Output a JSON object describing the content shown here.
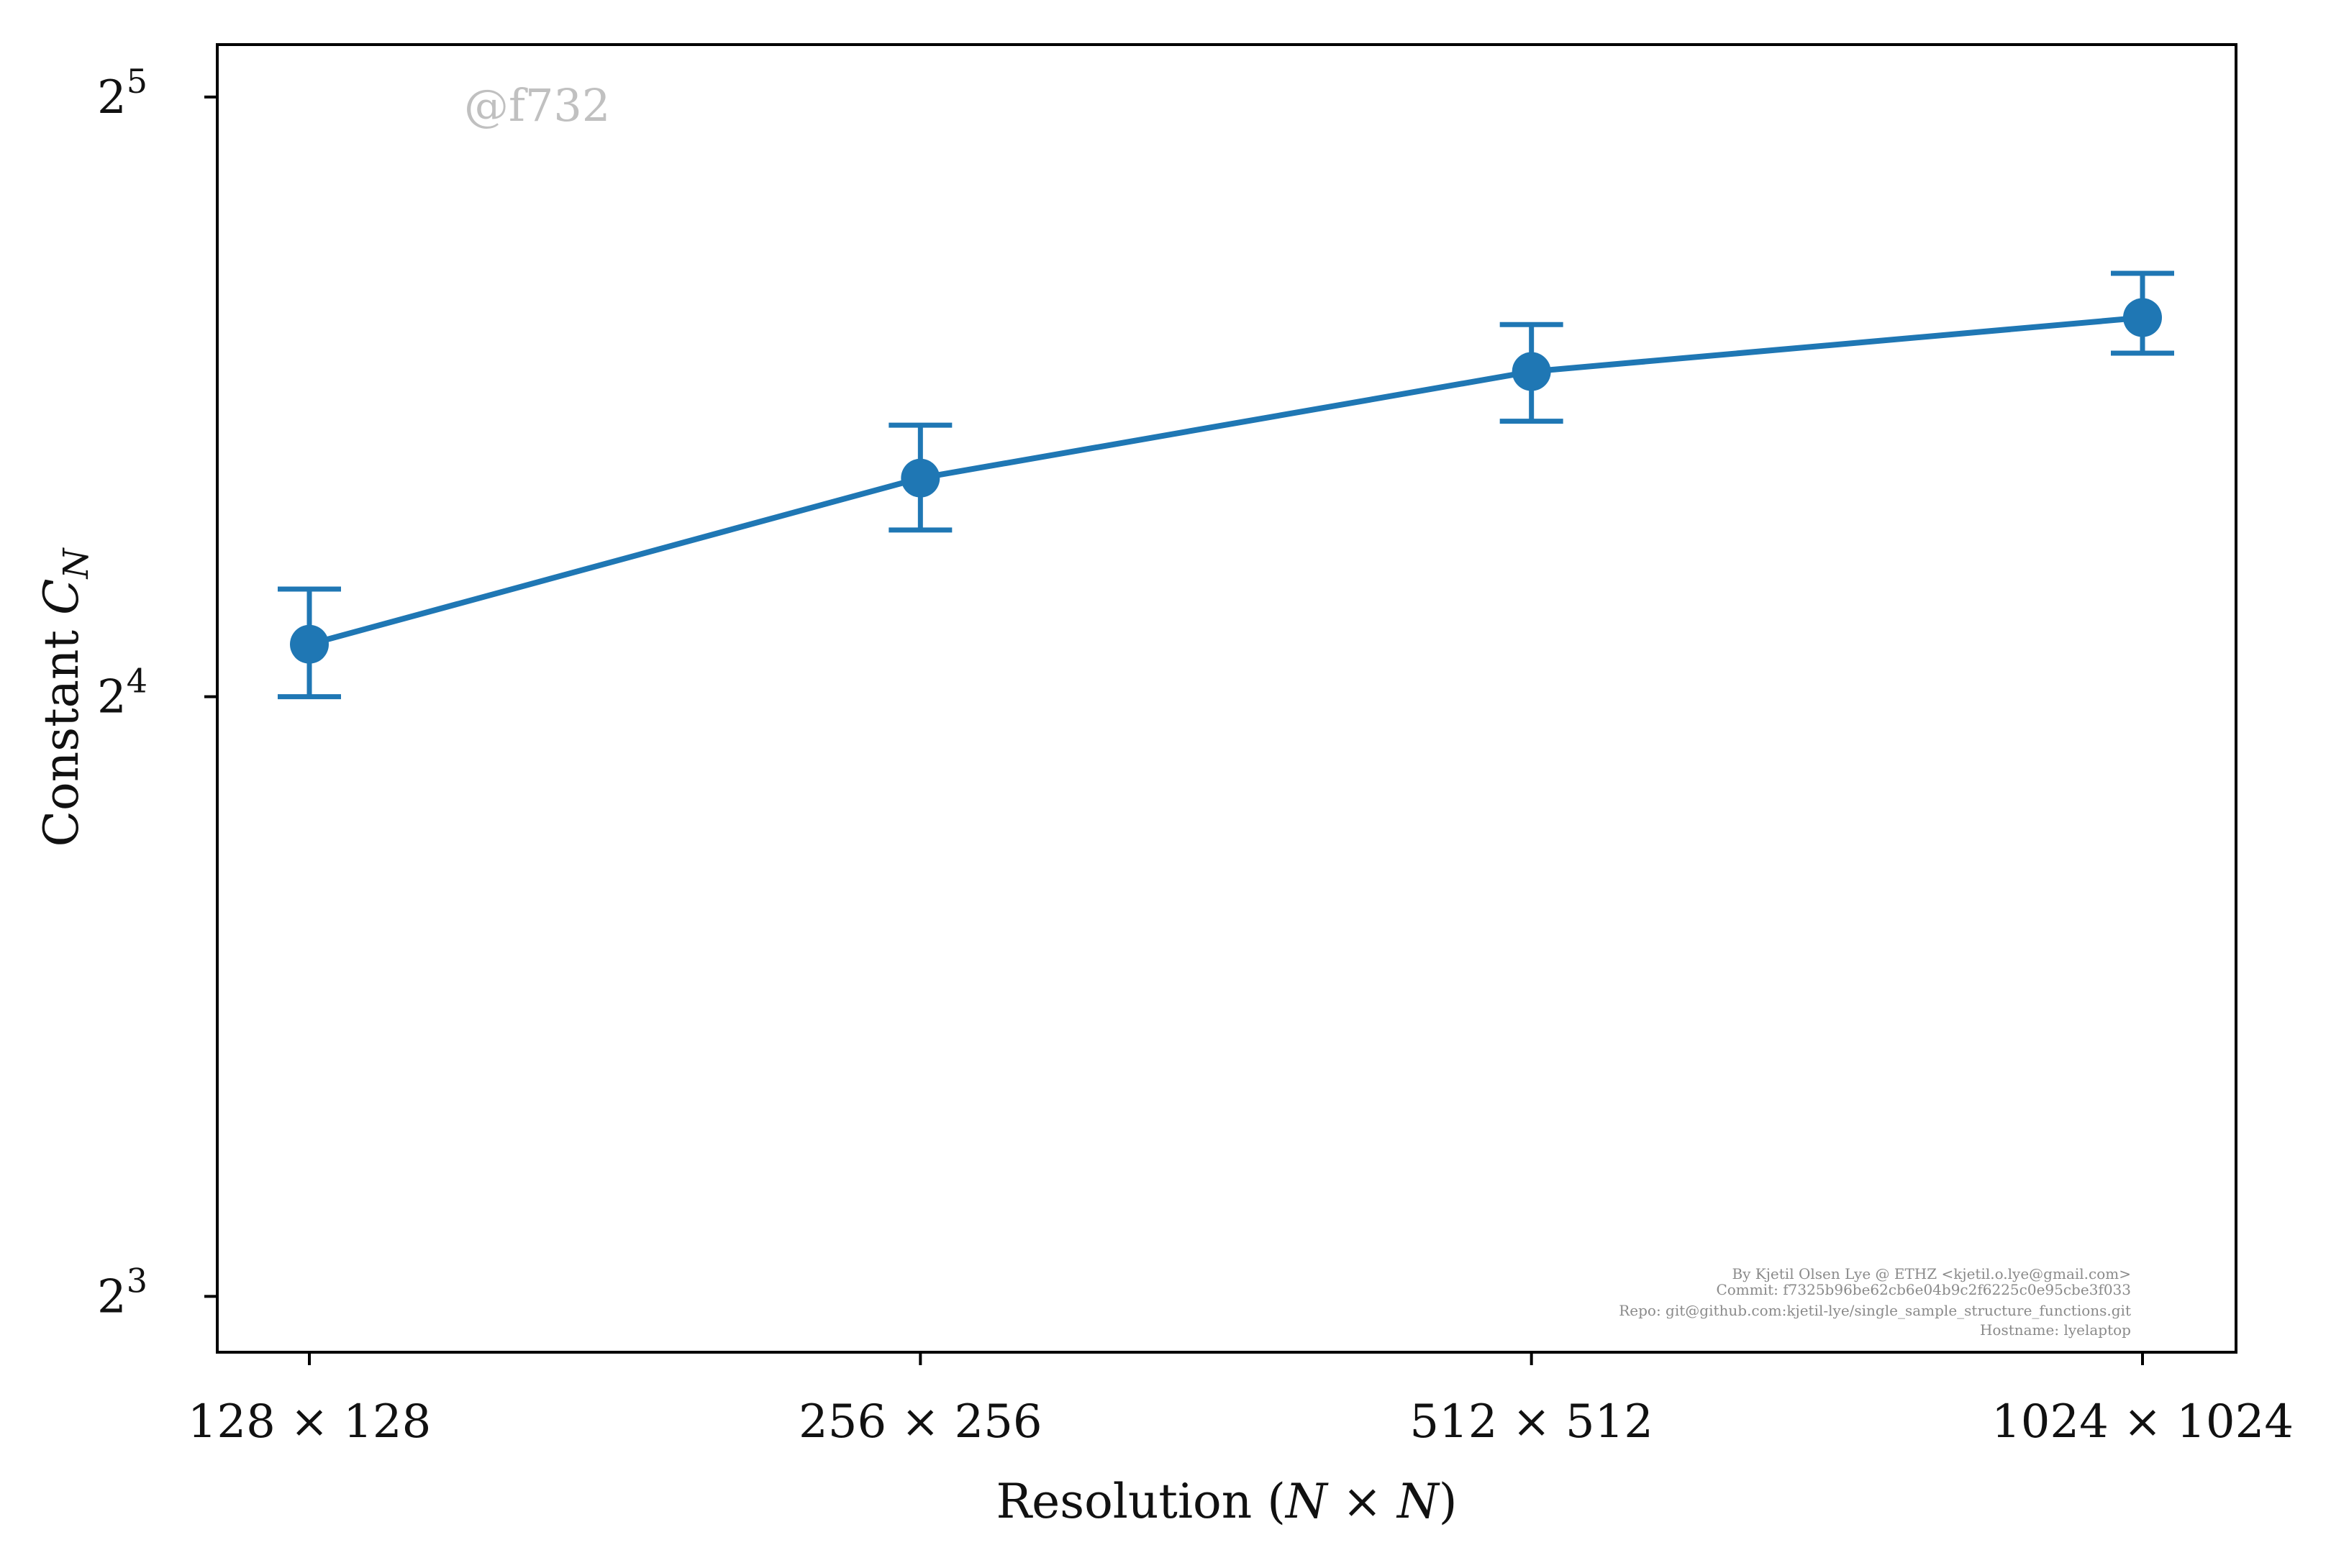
{
  "chart_data": {
    "type": "line",
    "error_bars": true,
    "categories": [
      "128 × 128",
      "256 × 256",
      "512 × 512",
      "1024 × 1024"
    ],
    "series": [
      {
        "values": [
          17.0,
          20.6,
          23.3,
          24.8
        ],
        "err_low": [
          1.0,
          1.2,
          1.3,
          1.0
        ],
        "err_high": [
          1.12,
          1.3,
          1.3,
          1.3
        ]
      }
    ],
    "xlabel": "Resolution (N × N)",
    "ylabel": "Constant C_N",
    "yscale": "log2",
    "ylim": [
      7.5,
      34.0
    ],
    "yticks": [
      {
        "value": 8,
        "base": "2",
        "exp": "3"
      },
      {
        "value": 16,
        "base": "2",
        "exp": "4"
      },
      {
        "value": 32,
        "base": "2",
        "exp": "5"
      }
    ],
    "color": "#1f77b4",
    "grid": false,
    "legend": "none"
  },
  "watermark": "@f732",
  "credits": [
    "By Kjetil Olsen Lye @ ETHZ <kjetil.o.lye@gmail.com>",
    "Commit: f7325b96be62cb6e04b9c2f6225c0e95cbe3f033",
    "Repo: git@github.com:kjetil-lye/single_sample_structure_functions.git",
    "Hostname: lyelaptop"
  ]
}
